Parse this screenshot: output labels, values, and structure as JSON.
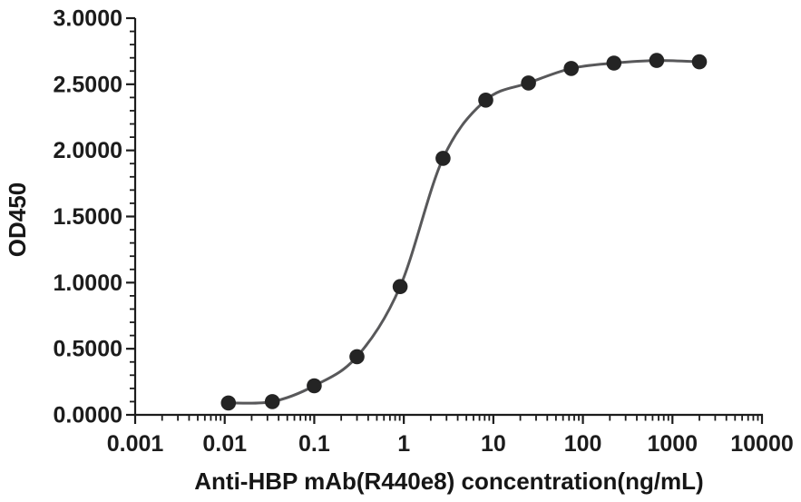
{
  "chart_data": {
    "type": "line",
    "title": "",
    "xlabel": "Anti-HBP mAb(R440e8) concentration(ng/mL)",
    "ylabel": "OD450",
    "x_scale": "log",
    "y_scale": "linear",
    "xlim": [
      0.001,
      10000
    ],
    "ylim": [
      0,
      3
    ],
    "grid": false,
    "legend": "none",
    "x_ticks": [
      0.001,
      0.01,
      0.1,
      1,
      10,
      100,
      1000,
      10000
    ],
    "x_tick_labels": [
      "0.001",
      "0.01",
      "0.1",
      "1",
      "10",
      "100",
      "1000",
      "10000"
    ],
    "x_minor_tick_multiples": [
      2,
      3,
      4,
      5,
      6,
      7,
      8,
      9
    ],
    "y_ticks": [
      0,
      0.5,
      1.0,
      1.5,
      2.0,
      2.5,
      3.0
    ],
    "y_tick_labels": [
      "0.0000",
      "0.5000",
      "1.0000",
      "1.5000",
      "2.0000",
      "2.5000",
      "3.0000"
    ],
    "y_minor_step": 0.1,
    "series": [
      {
        "name": "Anti-HBP mAb(R440e8)",
        "marker": "circle",
        "x": [
          0.011,
          0.034,
          0.1,
          0.3,
          0.91,
          2.74,
          8.23,
          24.69,
          74.07,
          222.22,
          666.67,
          2000
        ],
        "y": [
          0.09,
          0.1,
          0.22,
          0.44,
          0.97,
          1.94,
          2.38,
          2.51,
          2.62,
          2.66,
          2.68,
          2.67
        ]
      }
    ],
    "colors": {
      "line": "#58585a",
      "marker": "#242424",
      "axis": "#1c1c1c",
      "text": "#1c1c1c",
      "background": "#ffffff"
    }
  }
}
